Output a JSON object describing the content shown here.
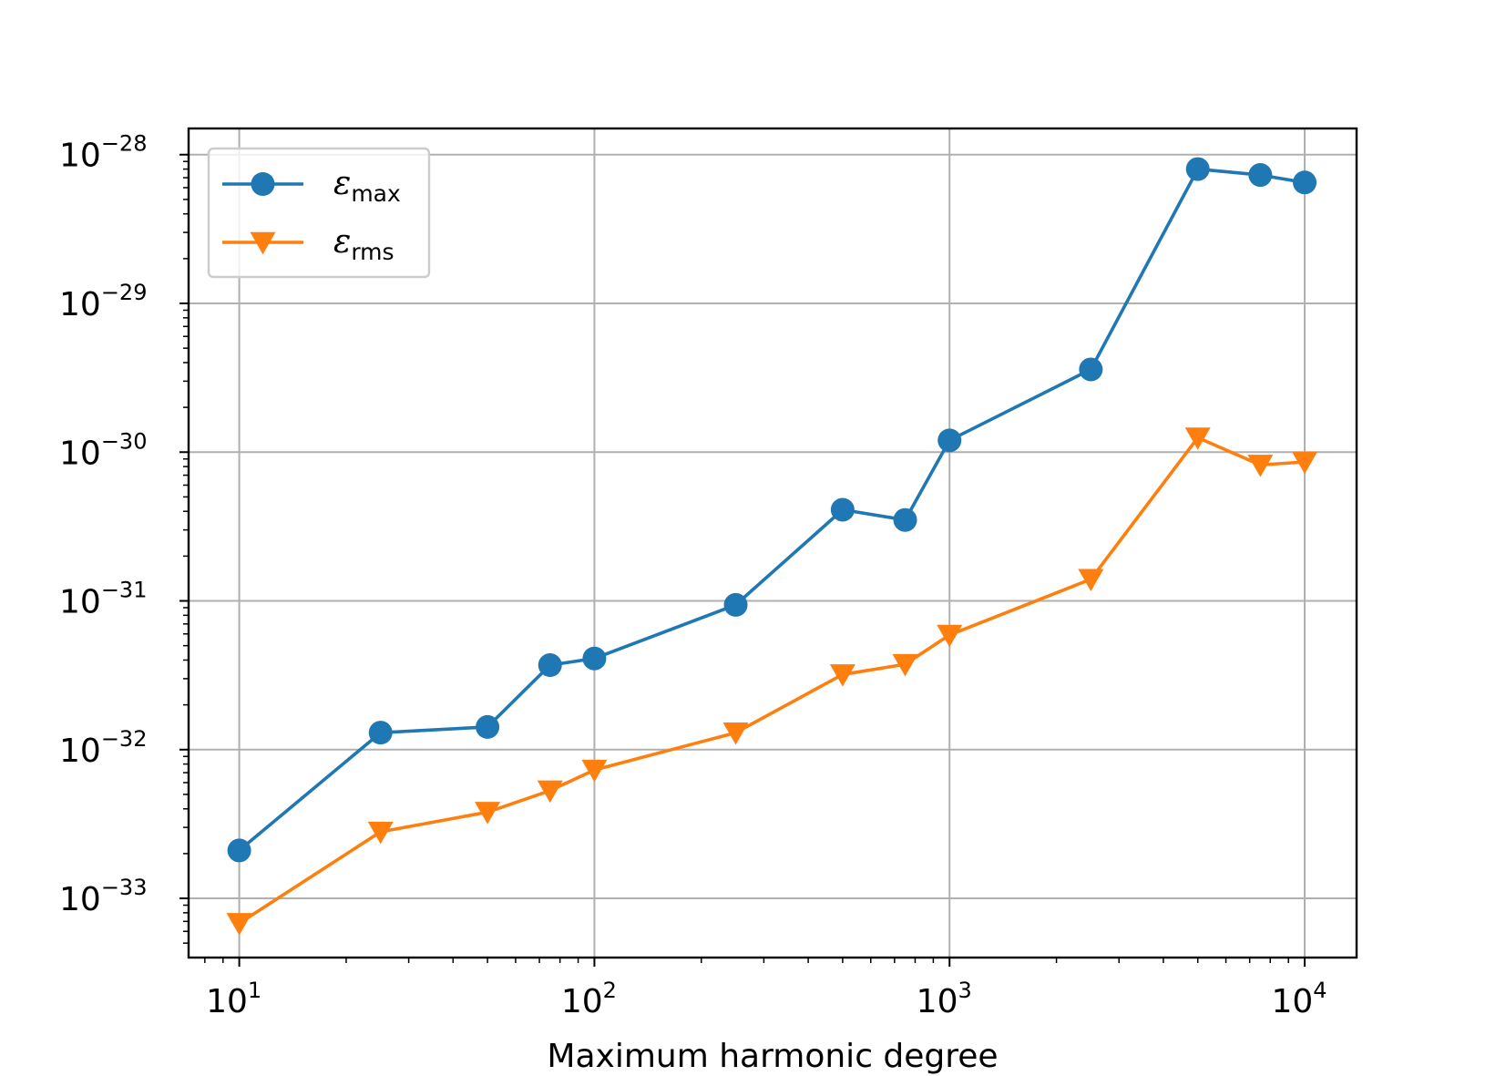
{
  "chart_data": {
    "type": "line",
    "xscale": "log",
    "yscale": "log",
    "xlabel": "Maximum harmonic degree",
    "ylabel": "",
    "xlim": [
      7.2,
      14000
    ],
    "ylim": [
      4e-34,
      1.5e-28
    ],
    "x": [
      10,
      25,
      50,
      75,
      100,
      250,
      500,
      750,
      1000,
      2500,
      5000,
      7500,
      10000
    ],
    "x_ticks": [
      {
        "value": 10,
        "base": "10",
        "exp": "1"
      },
      {
        "value": 100,
        "base": "10",
        "exp": "2"
      },
      {
        "value": 1000,
        "base": "10",
        "exp": "3"
      },
      {
        "value": 10000,
        "base": "10",
        "exp": "4"
      }
    ],
    "y_ticks": [
      {
        "value": 1e-28,
        "base": "10",
        "exp": "−28"
      },
      {
        "value": 1e-29,
        "base": "10",
        "exp": "−29"
      },
      {
        "value": 1e-30,
        "base": "10",
        "exp": "−30"
      },
      {
        "value": 1e-31,
        "base": "10",
        "exp": "−31"
      },
      {
        "value": 1e-32,
        "base": "10",
        "exp": "−32"
      },
      {
        "value": 1e-33,
        "base": "10",
        "exp": "−33"
      }
    ],
    "grid": true,
    "legend_position": "top-left",
    "series": [
      {
        "symbol": "ε",
        "subscript": "max",
        "color": "#1f77b4",
        "marker": "circle",
        "values": [
          2.1e-33,
          1.3e-32,
          1.42e-32,
          3.7e-32,
          4.1e-32,
          9.4e-32,
          4.1e-31,
          3.5e-31,
          1.2e-30,
          3.6e-30,
          8e-29,
          7.3e-29,
          6.5e-29
        ]
      },
      {
        "symbol": "ε",
        "subscript": "rms",
        "color": "#ff7f0e",
        "marker": "triangle-down",
        "values": [
          6.8e-34,
          2.8e-33,
          3.8e-33,
          5.3e-33,
          7.3e-33,
          1.3e-32,
          3.2e-32,
          3.75e-32,
          5.9e-32,
          1.4e-31,
          1.25e-30,
          8.2e-31,
          8.6e-31
        ]
      }
    ]
  }
}
